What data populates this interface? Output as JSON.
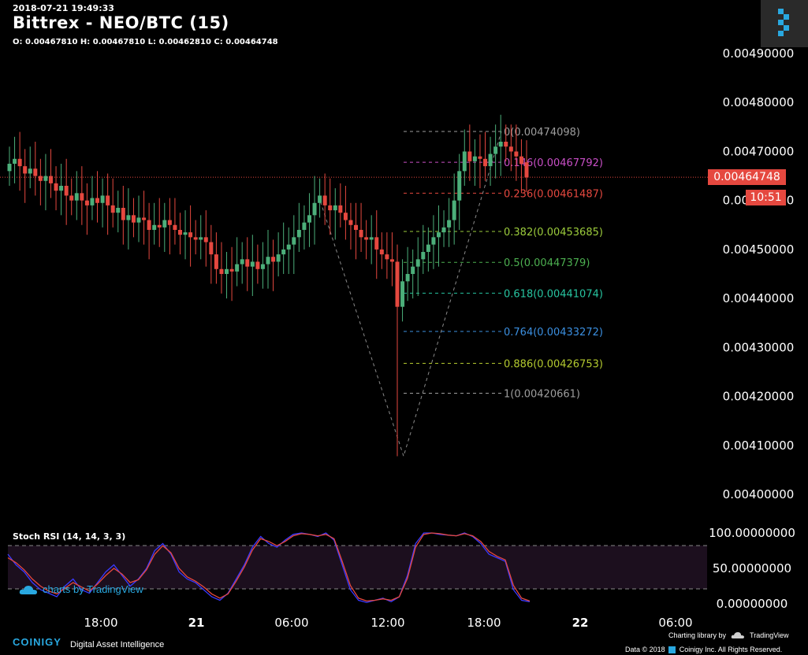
{
  "header": {
    "timestamp": "2018-07-21 19:49:33",
    "title": "Bittrex - NEO/BTC (15)",
    "ohlc": "O: 0.00467810 H: 0.00467810 L: 0.00462810 C: 0.00464748"
  },
  "price_tag": {
    "value": "0.00464748",
    "timer": "10:51",
    "color": "#e5483f"
  },
  "stoch_label": "Stoch RSI (14, 14, 3, 3)",
  "watermark": "charts by TradingView",
  "footer": {
    "brand": "COINIGY",
    "tagline": "Digital Asset Intelligence",
    "credit_line1": "Charting library by",
    "credit_tv": "TradingView",
    "credit_line2_pre": "Data © 2018",
    "credit_line2_post": "Coinigy Inc. All Rights Reserved."
  },
  "colors": {
    "up": "#4caf7a",
    "down": "#e5483f",
    "accent": "#29a8e0",
    "stoch_k": "#3a3aff",
    "stoch_d": "#e5483f",
    "stoch_band": "#1c0f1e"
  },
  "chart_data": [
    {
      "type": "candlestick",
      "title": "Bittrex - NEO/BTC (15)",
      "x_ticks": [
        "18:00",
        "21",
        "06:00",
        "12:00",
        "18:00",
        "22",
        "06:00"
      ],
      "y_ticks": [
        "0.00490000",
        "0.00480000",
        "0.00470000",
        "0.00460000",
        "0.00450000",
        "0.00440000",
        "0.00430000",
        "0.00420000",
        "0.00410000",
        "0.00400000"
      ],
      "ylim": [
        0.00395,
        0.00492
      ],
      "last_price": 0.00464748,
      "fib_levels": [
        {
          "label": "0(0.00474098)",
          "value": 0.00474098,
          "color": "#9e9e9e"
        },
        {
          "label": "0.146(0.00467792)",
          "value": 0.00467792,
          "color": "#c94fc7"
        },
        {
          "label": "0.236(0.00461487)",
          "value": 0.00461487,
          "color": "#e5483f"
        },
        {
          "label": "0.382(0.00453685)",
          "value": 0.00453685,
          "color": "#9ccc3c"
        },
        {
          "label": "0.5(0.00447379)",
          "value": 0.00447379,
          "color": "#4caf50"
        },
        {
          "label": "0.618(0.00441074)",
          "value": 0.00441074,
          "color": "#27c4a0"
        },
        {
          "label": "0.764(0.00433272)",
          "value": 0.00433272,
          "color": "#3b8fe0"
        },
        {
          "label": "0.886(0.00426753)",
          "value": 0.00426753,
          "color": "#b3c92f"
        },
        {
          "label": "1(0.00420661)",
          "value": 0.00420661,
          "color": "#9e9e9e"
        }
      ],
      "series": [
        {
          "points": [
            [
              0.00466,
              0.004675
            ],
            [
              0.004675,
              0.004685
            ],
            [
              0.004685,
              0.00467
            ],
            [
              0.00467,
              0.004655
            ],
            [
              0.004655,
              0.004665
            ],
            [
              0.004665,
              0.00465
            ],
            [
              0.00465,
              0.00464
            ],
            [
              0.00464,
              0.00465
            ],
            [
              0.00465,
              0.004635
            ],
            [
              0.004635,
              0.00462
            ],
            [
              0.00462,
              0.00463
            ],
            [
              0.00463,
              0.00461
            ],
            [
              0.00461,
              0.0046
            ],
            [
              0.0046,
              0.004615
            ],
            [
              0.004615,
              0.0046
            ],
            [
              0.0046,
              0.00459
            ],
            [
              0.00459,
              0.004605
            ],
            [
              0.004605,
              0.004595
            ],
            [
              0.004595,
              0.00461
            ],
            [
              0.00461,
              0.00459
            ],
            [
              0.00459,
              0.004575
            ],
            [
              0.004575,
              0.004585
            ],
            [
              0.004585,
              0.00456
            ],
            [
              0.00456,
              0.00457
            ],
            [
              0.00457,
              0.004555
            ],
            [
              0.004555,
              0.004565
            ],
            [
              0.004565,
              0.00456
            ],
            [
              0.00456,
              0.00454
            ],
            [
              0.00454,
              0.00455
            ],
            [
              0.00455,
              0.004545
            ],
            [
              0.004545,
              0.00456
            ],
            [
              0.00456,
              0.00455
            ],
            [
              0.00455,
              0.00454
            ],
            [
              0.00454,
              0.00453
            ],
            [
              0.00453,
              0.004535
            ],
            [
              0.004535,
              0.004525
            ],
            [
              0.004525,
              0.00452
            ],
            [
              0.00452,
              0.004525
            ],
            [
              0.004525,
              0.004515
            ],
            [
              0.004515,
              0.00449
            ],
            [
              0.00449,
              0.00446
            ],
            [
              0.00446,
              0.00445
            ],
            [
              0.00445,
              0.00446
            ],
            [
              0.00446,
              0.004455
            ],
            [
              0.004455,
              0.00447
            ],
            [
              0.00447,
              0.00448
            ],
            [
              0.00448,
              0.004465
            ],
            [
              0.004465,
              0.004475
            ],
            [
              0.004475,
              0.00446
            ],
            [
              0.00446,
              0.00447
            ],
            [
              0.00447,
              0.004485
            ],
            [
              0.004485,
              0.004475
            ],
            [
              0.004475,
              0.00449
            ],
            [
              0.00449,
              0.0045
            ],
            [
              0.0045,
              0.00451
            ],
            [
              0.00451,
              0.004525
            ],
            [
              0.004525,
              0.00454
            ],
            [
              0.00454,
              0.004555
            ],
            [
              0.004555,
              0.00457
            ],
            [
              0.00457,
              0.004595
            ],
            [
              0.004595,
              0.00461
            ],
            [
              0.00461,
              0.00459
            ],
            [
              0.00459,
              0.00458
            ],
            [
              0.00458,
              0.00459
            ],
            [
              0.00459,
              0.004575
            ],
            [
              0.004575,
              0.00456
            ],
            [
              0.00456,
              0.00455
            ],
            [
              0.00455,
              0.00454
            ],
            [
              0.00454,
              0.004525
            ],
            [
              0.004525,
              0.00452
            ],
            [
              0.00452,
              0.004525
            ],
            [
              0.004525,
              0.0045
            ],
            [
              0.0045,
              0.00449
            ],
            [
              0.00449,
              0.00448
            ],
            [
              0.00448,
              0.004475
            ],
            [
              0.004475,
              0.004383
            ],
            [
              0.004383,
              0.004435
            ],
            [
              0.004435,
              0.00445
            ],
            [
              0.00445,
              0.004465
            ],
            [
              0.004465,
              0.00448
            ],
            [
              0.00448,
              0.004495
            ],
            [
              0.004495,
              0.00451
            ],
            [
              0.00451,
              0.004525
            ],
            [
              0.004525,
              0.004535
            ],
            [
              0.004535,
              0.004545
            ],
            [
              0.004545,
              0.00456
            ],
            [
              0.00456,
              0.0046
            ],
            [
              0.0046,
              0.00466
            ],
            [
              0.00466,
              0.0047
            ],
            [
              0.0047,
              0.00468
            ],
            [
              0.00468,
              0.00469
            ],
            [
              0.00469,
              0.004685
            ],
            [
              0.004685,
              0.00467
            ],
            [
              0.00467,
              0.004695
            ],
            [
              0.004695,
              0.00471
            ],
            [
              0.00471,
              0.00472
            ],
            [
              0.00472,
              0.00471
            ],
            [
              0.00471,
              0.0047
            ],
            [
              0.0047,
              0.00469
            ],
            [
              0.00469,
              0.004675
            ],
            [
              0.004678,
              0.004647
            ]
          ],
          "note": "each point = [open, close]"
        }
      ]
    },
    {
      "type": "line",
      "title": "Stoch RSI (14, 14, 3, 3)",
      "y_ticks": [
        "100.00000000",
        "50.00000000",
        "0.00000000"
      ],
      "ylim": [
        0,
        100
      ],
      "bands": [
        80,
        20
      ],
      "series": [
        {
          "name": "K",
          "values": [
            70,
            55,
            45,
            30,
            20,
            15,
            10,
            25,
            35,
            20,
            15,
            30,
            45,
            55,
            40,
            25,
            35,
            50,
            75,
            85,
            70,
            45,
            35,
            30,
            20,
            10,
            5,
            15,
            35,
            55,
            80,
            95,
            85,
            80,
            90,
            98,
            100,
            98,
            95,
            100,
            90,
            55,
            20,
            5,
            2,
            5,
            8,
            3,
            10,
            40,
            85,
            100,
            100,
            98,
            97,
            96,
            100,
            95,
            85,
            70,
            65,
            60,
            20,
            5,
            3
          ]
        },
        {
          "name": "D",
          "values": [
            65,
            58,
            48,
            35,
            25,
            18,
            14,
            22,
            30,
            24,
            18,
            28,
            40,
            50,
            42,
            30,
            34,
            48,
            70,
            82,
            72,
            50,
            38,
            32,
            24,
            14,
            8,
            14,
            32,
            52,
            76,
            92,
            88,
            82,
            88,
            96,
            99,
            98,
            96,
            98,
            92,
            60,
            26,
            8,
            4,
            5,
            7,
            5,
            10,
            36,
            80,
            98,
            100,
            99,
            97,
            96,
            99,
            96,
            88,
            74,
            67,
            62,
            26,
            8,
            4
          ]
        }
      ]
    }
  ]
}
